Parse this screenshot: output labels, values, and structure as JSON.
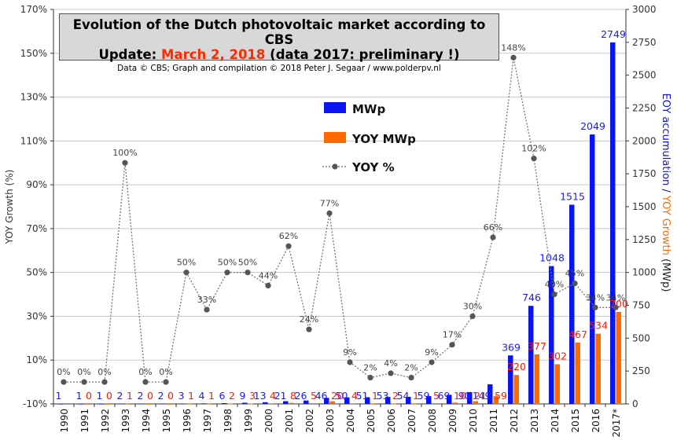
{
  "title": {
    "line1": "Evolution  of the Dutch photovoltaic  market according to CBS",
    "line2_prefix": "Update: ",
    "line2_date": "March 2, 2018",
    "line2_suffix": " (data 2017: preliminary  !)",
    "line3": "Data © CBS; Graph and compilation © 2018 Peter J. Segaar / www.polderpv.nl"
  },
  "colors": {
    "mwp": "#0a14f0",
    "yoy_mwp": "#ff6a00",
    "yoy_pct": "#777777",
    "mwp_label": "#1a1aff",
    "yoy_mwp_label": "#ff1a00"
  },
  "chart_data": {
    "type": "bar",
    "categories": [
      "1990",
      "1991",
      "1992",
      "1993",
      "1994",
      "1995",
      "1996",
      "1997",
      "1998",
      "1999",
      "2000",
      "2001",
      "2002",
      "2003",
      "2004",
      "2005",
      "2006",
      "2007",
      "2008",
      "2009",
      "2010",
      "2011",
      "2012",
      "2013",
      "2014",
      "2015",
      "2016",
      "2017*"
    ],
    "series": [
      {
        "name": "MWp",
        "type": "bar",
        "axis": "right",
        "values": [
          1,
          1,
          1,
          2,
          2,
          2,
          3,
          4,
          6,
          9,
          13,
          21,
          26,
          46,
          50,
          51,
          53,
          54,
          59,
          69,
          90,
          149,
          369,
          746,
          1048,
          1515,
          2049,
          2749
        ]
      },
      {
        "name": "YOY MWp",
        "type": "bar",
        "axis": "right",
        "values": [
          null,
          0,
          0,
          1,
          0,
          0,
          1,
          1,
          2,
          3,
          4,
          8,
          5,
          20,
          4,
          1,
          2,
          1,
          5,
          10,
          21,
          59,
          220,
          377,
          302,
          467,
          534,
          700
        ]
      },
      {
        "name": "YOY %",
        "type": "line",
        "axis": "left",
        "values": [
          0,
          0,
          0,
          100,
          0,
          0,
          50,
          33,
          50,
          50,
          44,
          62,
          24,
          77,
          9,
          2,
          4,
          2,
          9,
          17,
          30,
          66,
          148,
          102,
          40,
          45,
          34,
          34
        ]
      }
    ],
    "y_left": {
      "label": "YOY Growth (%)",
      "min": -10,
      "max": 170,
      "ticks": [
        -10,
        10,
        30,
        50,
        70,
        90,
        110,
        130,
        150,
        170
      ]
    },
    "y_right": {
      "label_part1": "EOY accumulation / ",
      "label_part2": "YOY Growth",
      "label_part3": " (MWp)",
      "min": 0,
      "max": 3000,
      "ticks": [
        0,
        250,
        500,
        750,
        1000,
        1250,
        1500,
        1750,
        2000,
        2250,
        2500,
        2750,
        3000
      ]
    },
    "legend": {
      "placement": "upper-middle"
    }
  }
}
